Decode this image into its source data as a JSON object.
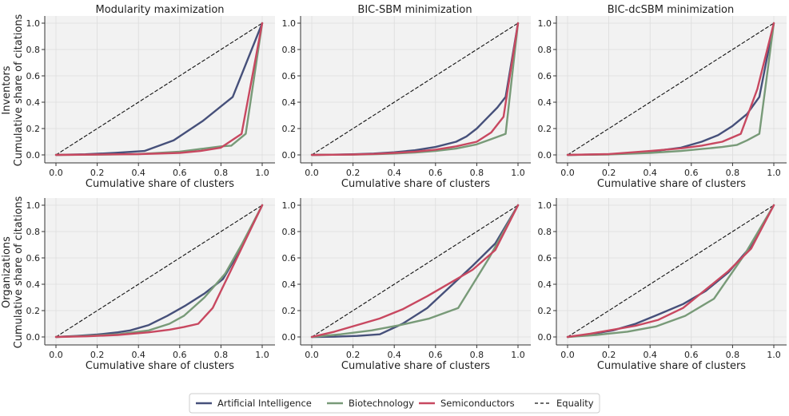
{
  "figure": {
    "row_labels": [
      {
        "line1": "Inventors",
        "line2": "Cumulative share of citations"
      },
      {
        "line1": "Organizations",
        "line2": "Cumulative share of citations"
      }
    ],
    "column_titles": [
      "Modularity maximization",
      "BIC-SBM minimization",
      "BIC-dcSBM minimization"
    ]
  },
  "colors": {
    "ai": "#46507a",
    "bio": "#789a78",
    "semi": "#c84860",
    "equality": "#111111",
    "panel_bg": "#f2f2f2"
  },
  "legend": [
    {
      "key": "ai",
      "label": "Artificial Intelligence",
      "style": "solid"
    },
    {
      "key": "bio",
      "label": "Biotechnology",
      "style": "solid"
    },
    {
      "key": "semi",
      "label": "Semiconductors",
      "style": "solid"
    },
    {
      "key": "equality",
      "label": "Equality",
      "style": "dashed"
    }
  ],
  "chart_data": [
    {
      "type": "line",
      "title": "Modularity maximization",
      "row": "Inventors",
      "xlabel": "Cumulative share of clusters",
      "ylabel": "Cumulative share of citations",
      "xlim": [
        0,
        1
      ],
      "ylim": [
        0,
        1
      ],
      "xticks": [
        "0.0",
        "0.2",
        "0.4",
        "0.6",
        "0.8",
        "1.0"
      ],
      "yticks": [
        "0.0",
        "0.2",
        "0.4",
        "0.6",
        "0.8",
        "1.0"
      ],
      "series": [
        {
          "name": "Artificial Intelligence",
          "x": [
            0,
            0.143,
            0.286,
            0.429,
            0.571,
            0.714,
            0.857,
            1.0
          ],
          "y": [
            0,
            0.005,
            0.015,
            0.03,
            0.11,
            0.26,
            0.44,
            1.0
          ]
        },
        {
          "name": "Biotechnology",
          "x": [
            0,
            0.2,
            0.4,
            0.6,
            0.7,
            0.8,
            0.85,
            0.92,
            1.0
          ],
          "y": [
            0,
            0.002,
            0.006,
            0.025,
            0.045,
            0.065,
            0.07,
            0.16,
            1.0
          ]
        },
        {
          "name": "Semiconductors",
          "x": [
            0,
            0.2,
            0.4,
            0.6,
            0.7,
            0.8,
            0.9,
            1.0
          ],
          "y": [
            0,
            0.003,
            0.006,
            0.015,
            0.03,
            0.055,
            0.16,
            1.0
          ]
        },
        {
          "name": "Equality",
          "x": [
            0,
            1
          ],
          "y": [
            0,
            1
          ]
        }
      ]
    },
    {
      "type": "line",
      "title": "BIC-SBM minimization",
      "row": "Inventors",
      "xlabel": "Cumulative share of clusters",
      "ylabel": "",
      "xlim": [
        0,
        1
      ],
      "ylim": [
        0,
        1
      ],
      "xticks": [
        "0.0",
        "0.2",
        "0.4",
        "0.6",
        "0.8",
        "1.0"
      ],
      "yticks": [
        "0.0",
        "0.2",
        "0.4",
        "0.6",
        "0.8",
        "1.0"
      ],
      "series": [
        {
          "name": "Artificial Intelligence",
          "x": [
            0,
            0.1,
            0.2,
            0.3,
            0.4,
            0.5,
            0.6,
            0.7,
            0.75,
            0.8,
            0.85,
            0.9,
            0.94,
            1.0
          ],
          "y": [
            0,
            0.002,
            0.005,
            0.01,
            0.02,
            0.035,
            0.06,
            0.1,
            0.14,
            0.2,
            0.28,
            0.36,
            0.44,
            1.0
          ]
        },
        {
          "name": "Biotechnology",
          "x": [
            0,
            0.1,
            0.2,
            0.3,
            0.4,
            0.5,
            0.6,
            0.7,
            0.8,
            0.87,
            0.94,
            1.0
          ],
          "y": [
            0,
            0.001,
            0.002,
            0.005,
            0.01,
            0.018,
            0.03,
            0.048,
            0.08,
            0.12,
            0.16,
            1.0
          ]
        },
        {
          "name": "Semiconductors",
          "x": [
            0,
            0.1,
            0.2,
            0.3,
            0.4,
            0.5,
            0.6,
            0.7,
            0.8,
            0.87,
            0.93,
            1.0
          ],
          "y": [
            0,
            0.001,
            0.003,
            0.007,
            0.015,
            0.025,
            0.04,
            0.065,
            0.1,
            0.17,
            0.29,
            1.0
          ]
        },
        {
          "name": "Equality",
          "x": [
            0,
            1
          ],
          "y": [
            0,
            1
          ]
        }
      ]
    },
    {
      "type": "line",
      "title": "BIC-dcSBM minimization",
      "row": "Inventors",
      "xlabel": "Cumulative share of clusters",
      "ylabel": "",
      "xlim": [
        0,
        1
      ],
      "ylim": [
        0,
        1
      ],
      "xticks": [
        "0.0",
        "0.2",
        "0.4",
        "0.6",
        "0.8",
        "1.0"
      ],
      "yticks": [
        "0.0",
        "0.2",
        "0.4",
        "0.6",
        "0.8",
        "1.0"
      ],
      "series": [
        {
          "name": "Artificial Intelligence",
          "x": [
            0,
            0.2,
            0.4,
            0.55,
            0.65,
            0.73,
            0.8,
            0.87,
            0.93,
            1.0
          ],
          "y": [
            0,
            0.005,
            0.025,
            0.055,
            0.1,
            0.15,
            0.22,
            0.31,
            0.44,
            1.0
          ]
        },
        {
          "name": "Biotechnology",
          "x": [
            0,
            0.2,
            0.4,
            0.55,
            0.65,
            0.75,
            0.82,
            0.87,
            0.93,
            1.0
          ],
          "y": [
            0,
            0.003,
            0.015,
            0.03,
            0.045,
            0.06,
            0.075,
            0.11,
            0.16,
            1.0
          ]
        },
        {
          "name": "Semiconductors",
          "x": [
            0,
            0.2,
            0.4,
            0.55,
            0.65,
            0.75,
            0.84,
            0.92,
            1.0
          ],
          "y": [
            0,
            0.006,
            0.03,
            0.05,
            0.07,
            0.1,
            0.16,
            0.5,
            1.0
          ]
        },
        {
          "name": "Equality",
          "x": [
            0,
            1
          ],
          "y": [
            0,
            1
          ]
        }
      ]
    },
    {
      "type": "line",
      "title": "",
      "row": "Organizations",
      "xlabel": "Cumulative share of clusters",
      "ylabel": "Cumulative share of citations",
      "xlim": [
        0,
        1
      ],
      "ylim": [
        0,
        1
      ],
      "xticks": [
        "0.0",
        "0.2",
        "0.4",
        "0.6",
        "0.8",
        "1.0"
      ],
      "yticks": [
        "0.0",
        "0.2",
        "0.4",
        "0.6",
        "0.8",
        "1.0"
      ],
      "series": [
        {
          "name": "Artificial Intelligence",
          "x": [
            0,
            0.1,
            0.2,
            0.3,
            0.36,
            0.45,
            0.54,
            0.63,
            0.72,
            0.81,
            0.9,
            1.0
          ],
          "y": [
            0,
            0.008,
            0.018,
            0.035,
            0.05,
            0.09,
            0.16,
            0.24,
            0.33,
            0.44,
            0.68,
            1.0
          ]
        },
        {
          "name": "Biotechnology",
          "x": [
            0,
            0.15,
            0.3,
            0.45,
            0.55,
            0.62,
            0.72,
            0.82,
            0.9,
            1.0
          ],
          "y": [
            0,
            0.008,
            0.02,
            0.05,
            0.1,
            0.16,
            0.3,
            0.48,
            0.7,
            1.0
          ]
        },
        {
          "name": "Semiconductors",
          "x": [
            0,
            0.15,
            0.3,
            0.45,
            0.55,
            0.62,
            0.69,
            0.76,
            0.89,
            1.0
          ],
          "y": [
            0,
            0.005,
            0.015,
            0.035,
            0.055,
            0.075,
            0.1,
            0.22,
            0.64,
            1.0
          ]
        },
        {
          "name": "Equality",
          "x": [
            0,
            1
          ],
          "y": [
            0,
            1
          ]
        }
      ]
    },
    {
      "type": "line",
      "title": "",
      "row": "Organizations",
      "xlabel": "Cumulative share of clusters",
      "ylabel": "",
      "xlim": [
        0,
        1
      ],
      "ylim": [
        0,
        1
      ],
      "xticks": [
        "0.0",
        "0.2",
        "0.4",
        "0.6",
        "0.8",
        "1.0"
      ],
      "yticks": [
        "0.0",
        "0.2",
        "0.4",
        "0.6",
        "0.8",
        "1.0"
      ],
      "series": [
        {
          "name": "Artificial Intelligence",
          "x": [
            0,
            0.11,
            0.22,
            0.33,
            0.44,
            0.56,
            0.67,
            0.78,
            0.89,
            1.0
          ],
          "y": [
            0,
            0.002,
            0.008,
            0.02,
            0.1,
            0.22,
            0.38,
            0.54,
            0.71,
            1.0
          ]
        },
        {
          "name": "Biotechnology",
          "x": [
            0,
            0.14,
            0.29,
            0.43,
            0.57,
            0.71,
            0.86,
            1.0
          ],
          "y": [
            0,
            0.02,
            0.05,
            0.09,
            0.14,
            0.22,
            0.6,
            1.0
          ]
        },
        {
          "name": "Semiconductors",
          "x": [
            0,
            0.11,
            0.22,
            0.33,
            0.44,
            0.56,
            0.67,
            0.78,
            0.89,
            1.0
          ],
          "y": [
            0,
            0.04,
            0.09,
            0.14,
            0.21,
            0.31,
            0.41,
            0.51,
            0.66,
            1.0
          ]
        },
        {
          "name": "Equality",
          "x": [
            0,
            1
          ],
          "y": [
            0,
            1
          ]
        }
      ]
    },
    {
      "type": "line",
      "title": "",
      "row": "Organizations",
      "xlabel": "Cumulative share of clusters",
      "ylabel": "",
      "xlim": [
        0,
        1
      ],
      "ylim": [
        0,
        1
      ],
      "xticks": [
        "0.0",
        "0.2",
        "0.4",
        "0.6",
        "0.8",
        "1.0"
      ],
      "yticks": [
        "0.0",
        "0.2",
        "0.4",
        "0.6",
        "0.8",
        "1.0"
      ],
      "series": [
        {
          "name": "Artificial Intelligence",
          "x": [
            0,
            0.11,
            0.22,
            0.33,
            0.44,
            0.56,
            0.67,
            0.78,
            0.89,
            1.0
          ],
          "y": [
            0,
            0.02,
            0.05,
            0.1,
            0.17,
            0.25,
            0.35,
            0.49,
            0.69,
            1.0
          ]
        },
        {
          "name": "Biotechnology",
          "x": [
            0,
            0.14,
            0.29,
            0.43,
            0.57,
            0.71,
            0.86,
            1.0
          ],
          "y": [
            0,
            0.015,
            0.04,
            0.08,
            0.16,
            0.29,
            0.63,
            1.0
          ]
        },
        {
          "name": "Semiconductors",
          "x": [
            0,
            0.11,
            0.22,
            0.33,
            0.44,
            0.56,
            0.67,
            0.78,
            0.89,
            1.0
          ],
          "y": [
            0,
            0.025,
            0.055,
            0.085,
            0.13,
            0.22,
            0.36,
            0.5,
            0.67,
            1.0
          ]
        },
        {
          "name": "Equality",
          "x": [
            0,
            1
          ],
          "y": [
            0,
            1
          ]
        }
      ]
    }
  ]
}
